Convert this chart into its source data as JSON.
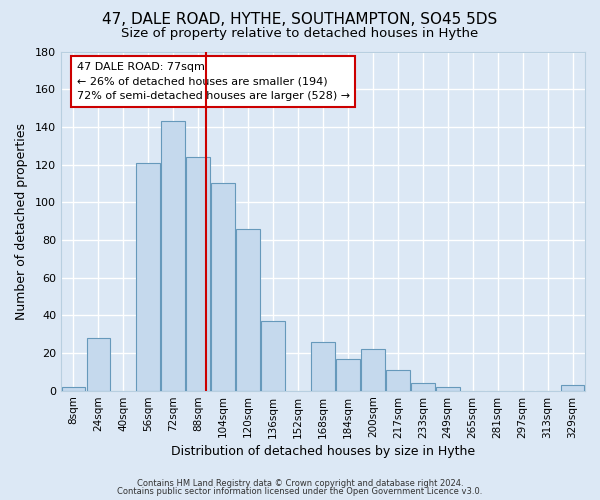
{
  "title": "47, DALE ROAD, HYTHE, SOUTHAMPTON, SO45 5DS",
  "subtitle": "Size of property relative to detached houses in Hythe",
  "xlabel": "Distribution of detached houses by size in Hythe",
  "ylabel": "Number of detached properties",
  "bar_labels": [
    "8sqm",
    "24sqm",
    "40sqm",
    "56sqm",
    "72sqm",
    "88sqm",
    "104sqm",
    "120sqm",
    "136sqm",
    "152sqm",
    "168sqm",
    "184sqm",
    "200sqm",
    "217sqm",
    "233sqm",
    "249sqm",
    "265sqm",
    "281sqm",
    "297sqm",
    "313sqm",
    "329sqm"
  ],
  "bar_values": [
    2,
    28,
    0,
    121,
    143,
    124,
    110,
    86,
    37,
    0,
    26,
    17,
    22,
    11,
    4,
    2,
    0,
    0,
    0,
    0,
    3
  ],
  "bar_color": "#c5d9ed",
  "bar_edge_color": "#6699bb",
  "redline_x": 5.33,
  "ylim": [
    0,
    180
  ],
  "yticks": [
    0,
    20,
    40,
    60,
    80,
    100,
    120,
    140,
    160,
    180
  ],
  "annotation_title": "47 DALE ROAD: 77sqm",
  "annotation_line1": "← 26% of detached houses are smaller (194)",
  "annotation_line2": "72% of semi-detached houses are larger (528) →",
  "annotation_box_color": "#ffffff",
  "annotation_box_edge": "#cc0000",
  "footer1": "Contains HM Land Registry data © Crown copyright and database right 2024.",
  "footer2": "Contains public sector information licensed under the Open Government Licence v3.0.",
  "background_color": "#dce8f5",
  "plot_background": "#dce8f5",
  "grid_color": "#b8cfe0",
  "title_fontsize": 11,
  "subtitle_fontsize": 9.5,
  "redline_color": "#cc0000"
}
